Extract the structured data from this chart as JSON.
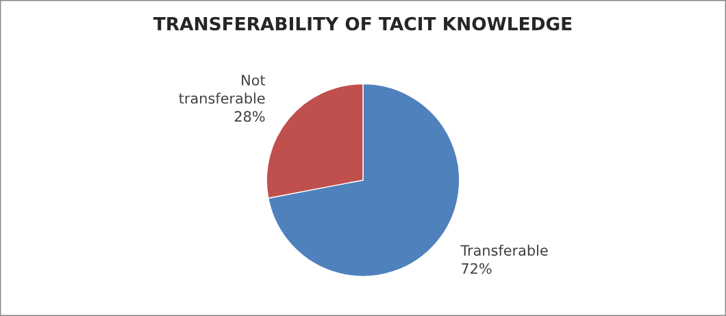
{
  "chart_data": {
    "type": "pie",
    "title": "TRANSFERABILITY OF TACIT KNOWLEDGE",
    "categories": [
      "Transferable",
      "Not transferable"
    ],
    "values": [
      72,
      28
    ],
    "colors": [
      "#4f81bd",
      "#c0504d"
    ],
    "value_labels": [
      "72%",
      "28%"
    ],
    "legend": false
  }
}
